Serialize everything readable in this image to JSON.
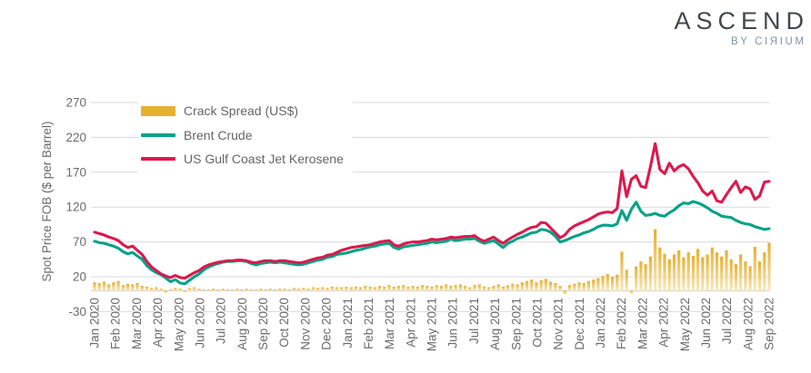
{
  "brand": {
    "title": "ASCEND",
    "subtitle": "BY CIЯIUM"
  },
  "colors": {
    "grid": "#D9D9D9",
    "zero_axis": "#CCCCCC",
    "tick_text": "#6B6B6B",
    "legend_text": "#666666",
    "brand_title": "#43474B",
    "brand_subtitle": "#7E97A4"
  },
  "chart_data": {
    "type": "combo-bar-line",
    "title": "",
    "xlabel": "",
    "ylabel": "Spot Price FOB ($ per Barrel)",
    "ylim": [
      -30,
      270
    ],
    "y_ticks": [
      270,
      220,
      170,
      120,
      70,
      20,
      -30
    ],
    "grid": true,
    "legend_position": "top-left-inside",
    "x_unit": "weekly points spanning monthly labels",
    "x_labels": [
      "Jan 2020",
      "Feb 2020",
      "Mar 2020",
      "Apr 2020",
      "May 2020",
      "Jun 2020",
      "Jul 2020",
      "Aug 2020",
      "Sep 2020",
      "Oct 2020",
      "Nov 2020",
      "Dec 2020",
      "Jan 2021",
      "Feb 2021",
      "Mar 2021",
      "Apr 2021",
      "May 2021",
      "Jun 2021",
      "Jul 2021",
      "Aug 2021",
      "Sep 2021",
      "Oct 2021",
      "Nov 2021",
      "Dec 2021",
      "Jan 2022",
      "Feb 2022",
      "Mar 2022",
      "Apr 2022",
      "May 2022",
      "Jun 2022",
      "Jul 2022",
      "Aug 2022",
      "Sep 2022"
    ],
    "series": [
      {
        "name": "Crack Spread (US$)",
        "type": "bar",
        "color": "#E9AF2E",
        "color_fade": "#F8E9BE",
        "values": [
          12,
          11,
          13,
          9,
          12,
          14,
          8,
          10,
          9,
          11,
          7,
          6,
          4,
          5,
          3,
          -3,
          2,
          4,
          3,
          -2,
          4,
          5,
          3,
          2,
          2,
          3,
          2,
          3,
          2,
          2,
          3,
          2,
          3,
          2,
          2,
          3,
          2,
          3,
          2,
          3,
          3,
          2,
          4,
          3,
          4,
          3,
          5,
          4,
          5,
          4,
          6,
          5,
          5,
          6,
          5,
          6,
          5,
          7,
          6,
          5,
          7,
          6,
          8,
          6,
          7,
          8,
          6,
          7,
          6,
          8,
          7,
          6,
          8,
          7,
          9,
          7,
          8,
          9,
          7,
          5,
          8,
          9,
          6,
          5,
          7,
          9,
          6,
          8,
          10,
          9,
          12,
          14,
          16,
          12,
          15,
          17,
          13,
          11,
          7,
          -5,
          8,
          10,
          12,
          11,
          14,
          16,
          18,
          21,
          24,
          20,
          23,
          56,
          30,
          -4,
          35,
          42,
          38,
          49,
          88,
          62,
          53,
          45,
          52,
          58,
          48,
          55,
          50,
          60,
          48,
          52,
          62,
          55,
          49,
          58,
          45,
          38,
          52,
          42,
          35,
          63,
          42,
          55,
          69
        ]
      },
      {
        "name": "Brent Crude",
        "type": "line",
        "color": "#03A287",
        "values": [
          71,
          69,
          68,
          66,
          64,
          61,
          56,
          53,
          55,
          50,
          45,
          36,
          30,
          26,
          23,
          18,
          13,
          16,
          11,
          10,
          15,
          20,
          24,
          30,
          34,
          37,
          39,
          41,
          42,
          42,
          43,
          43,
          42,
          39,
          37,
          39,
          40,
          41,
          40,
          41,
          40,
          39,
          38,
          37,
          38,
          40,
          42,
          44,
          45,
          48,
          49,
          52,
          53,
          54,
          56,
          58,
          59,
          61,
          63,
          64,
          66,
          67,
          68,
          62,
          60,
          63,
          64,
          65,
          66,
          67,
          68,
          70,
          69,
          70,
          71,
          74,
          72,
          73,
          74,
          74,
          75,
          71,
          68,
          70,
          72,
          67,
          62,
          68,
          71,
          75,
          77,
          80,
          83,
          84,
          88,
          87,
          84,
          78,
          70,
          72,
          75,
          78,
          80,
          83,
          85,
          88,
          92,
          94,
          94,
          93,
          96,
          115,
          101,
          117,
          127,
          114,
          108,
          109,
          111,
          108,
          107,
          112,
          116,
          122,
          126,
          125,
          128,
          126,
          123,
          119,
          114,
          111,
          107,
          106,
          105,
          101,
          98,
          96,
          95,
          92,
          90,
          88,
          89
        ]
      },
      {
        "name": "US Gulf Coast Jet Kerosene",
        "type": "line",
        "color": "#DB1A4D",
        "values": [
          84,
          82,
          80,
          77,
          75,
          72,
          66,
          62,
          64,
          58,
          52,
          42,
          34,
          29,
          24,
          21,
          19,
          22,
          19,
          18,
          22,
          26,
          29,
          34,
          37,
          39,
          41,
          42,
          43,
          43,
          44,
          44,
          43,
          41,
          40,
          42,
          43,
          43,
          42,
          43,
          43,
          42,
          41,
          40,
          41,
          43,
          45,
          47,
          48,
          51,
          52,
          55,
          58,
          60,
          62,
          63,
          64,
          65,
          66,
          68,
          70,
          71,
          72,
          66,
          64,
          67,
          69,
          70,
          70,
          71,
          72,
          74,
          73,
          74,
          75,
          77,
          76,
          77,
          78,
          78,
          79,
          74,
          71,
          74,
          77,
          72,
          68,
          73,
          77,
          81,
          84,
          88,
          91,
          92,
          98,
          97,
          90,
          83,
          76,
          80,
          88,
          93,
          96,
          99,
          102,
          106,
          110,
          112,
          113,
          112,
          118,
          172,
          135,
          160,
          165,
          150,
          148,
          178,
          211,
          174,
          168,
          183,
          172,
          178,
          181,
          175,
          164,
          155,
          143,
          137,
          143,
          129,
          127,
          138,
          148,
          157,
          141,
          149,
          146,
          131,
          136,
          156,
          157
        ]
      }
    ]
  }
}
